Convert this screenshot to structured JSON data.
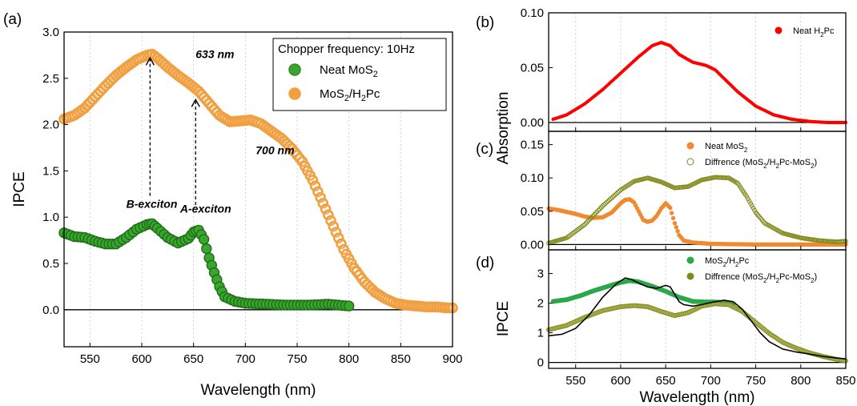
{
  "panel_labels": [
    "(a)",
    "(b)",
    "(c)",
    "(d)"
  ],
  "chart_data": [
    {
      "panel": "(a)",
      "type": "scatter",
      "xlabel": "Wavelength (nm)",
      "ylabel": "IPCE",
      "xlim": [
        525,
        900
      ],
      "ylim": [
        -0.4,
        3.0
      ],
      "xticks": [
        550,
        600,
        650,
        700,
        750,
        800,
        850,
        900
      ],
      "yticks": [
        0.0,
        0.5,
        1.0,
        1.5,
        2.0,
        2.5,
        3.0
      ],
      "grid": "vertical dotted",
      "zero_line": true,
      "legend": {
        "position": "top-right",
        "title": "Chopper frequency: 10Hz",
        "entries": [
          {
            "base": "Neat MoS",
            "sub": "2",
            "rest": "",
            "color": "#2e8b1f"
          },
          {
            "base": "MoS",
            "sub": "2",
            "rest": "/H",
            "sub2": "2",
            "rest2": "Pc",
            "color": "#f0a040"
          }
        ]
      },
      "annotations": [
        {
          "text": "633 nm",
          "x": 652,
          "y": 2.72
        },
        {
          "text": "700 nm",
          "x": 710,
          "y": 1.68
        },
        {
          "text": "B-exciton",
          "x": 585,
          "y": 1.1
        },
        {
          "text": "A-exciton",
          "x": 637,
          "y": 1.05
        }
      ],
      "arrows": [
        {
          "x": 608,
          "y_from": 1.23,
          "y_to": 2.72
        },
        {
          "x": 652,
          "y_from": 1.13,
          "y_to": 2.27
        }
      ],
      "series": [
        {
          "name": "Neat MoS2",
          "color": "#2e8b1f",
          "x": [
            525,
            535,
            545,
            555,
            565,
            575,
            585,
            595,
            605,
            610,
            615,
            625,
            635,
            645,
            650,
            655,
            660,
            665,
            670,
            675,
            680,
            690,
            700,
            720,
            740,
            760,
            780,
            800
          ],
          "y": [
            0.83,
            0.79,
            0.78,
            0.74,
            0.71,
            0.71,
            0.78,
            0.87,
            0.92,
            0.93,
            0.88,
            0.78,
            0.72,
            0.77,
            0.84,
            0.86,
            0.76,
            0.56,
            0.4,
            0.25,
            0.14,
            0.09,
            0.07,
            0.06,
            0.05,
            0.05,
            0.06,
            0.04
          ]
        },
        {
          "name": "MoS2/H2Pc",
          "color": "#f0a040",
          "x": [
            525,
            535,
            545,
            555,
            565,
            575,
            585,
            595,
            605,
            610,
            615,
            625,
            635,
            645,
            655,
            665,
            675,
            685,
            695,
            705,
            715,
            725,
            735,
            745,
            755,
            765,
            775,
            785,
            795,
            805,
            815,
            825,
            835,
            845,
            855,
            865,
            875,
            885,
            895,
            900
          ],
          "y": [
            2.06,
            2.1,
            2.18,
            2.3,
            2.42,
            2.53,
            2.62,
            2.7,
            2.75,
            2.76,
            2.72,
            2.62,
            2.53,
            2.45,
            2.36,
            2.23,
            2.1,
            2.03,
            2.04,
            2.05,
            2.01,
            1.93,
            1.85,
            1.74,
            1.6,
            1.4,
            1.15,
            0.9,
            0.65,
            0.45,
            0.3,
            0.19,
            0.12,
            0.07,
            0.05,
            0.04,
            0.03,
            0.03,
            0.02,
            0.02
          ]
        }
      ]
    },
    {
      "panel": "(b)",
      "type": "scatter",
      "ylabel": "Absorption",
      "xlim": [
        520,
        850
      ],
      "ylim": [
        -0.008,
        0.1
      ],
      "yticks": [
        0.0,
        0.05,
        0.1
      ],
      "legend": {
        "position": "top-right",
        "entries": [
          {
            "base": "Neat H",
            "sub": "2",
            "rest": "Pc",
            "color": "#ff0000"
          }
        ]
      },
      "series": [
        {
          "name": "Neat H2Pc",
          "color": "#ff0000",
          "x": [
            525,
            540,
            560,
            580,
            600,
            620,
            635,
            645,
            655,
            665,
            680,
            695,
            705,
            715,
            730,
            750,
            770,
            790,
            810,
            830,
            850
          ],
          "y": [
            0.003,
            0.007,
            0.017,
            0.03,
            0.045,
            0.06,
            0.07,
            0.073,
            0.07,
            0.062,
            0.055,
            0.052,
            0.048,
            0.04,
            0.028,
            0.015,
            0.007,
            0.003,
            0.001,
            0.0,
            0.0
          ]
        }
      ]
    },
    {
      "panel": "(c)",
      "type": "scatter",
      "xlim": [
        520,
        850
      ],
      "ylim": [
        -0.008,
        0.17
      ],
      "yticks": [
        0.0,
        0.05,
        0.1,
        0.15
      ],
      "legend": {
        "position": "top-center",
        "entries": [
          {
            "base": "Neat MoS",
            "sub": "2",
            "rest": "",
            "color": "#f08a30"
          },
          {
            "base": "Diffrence (MoS",
            "sub": "2",
            "rest": "/H",
            "sub2": "2",
            "rest2": "Pc-MoS",
            "sub3": "2",
            "rest3": ")",
            "color": "#808a1a"
          }
        ]
      },
      "series": [
        {
          "name": "Neat MoS2",
          "color": "#f08a30",
          "x": [
            520,
            530,
            540,
            550,
            560,
            570,
            580,
            590,
            600,
            605,
            610,
            615,
            620,
            625,
            630,
            635,
            640,
            645,
            650,
            655,
            660,
            665,
            670,
            680,
            700,
            750,
            800,
            850
          ],
          "y": [
            0.054,
            0.052,
            0.049,
            0.046,
            0.042,
            0.04,
            0.041,
            0.048,
            0.062,
            0.067,
            0.068,
            0.063,
            0.05,
            0.037,
            0.034,
            0.036,
            0.043,
            0.054,
            0.062,
            0.055,
            0.032,
            0.014,
            0.006,
            0.003,
            0.001,
            0.0,
            0.0,
            0.0
          ]
        },
        {
          "name": "Diffrence (MoS2/H2Pc-MoS2)",
          "color": "#808a1a",
          "x": [
            520,
            540,
            560,
            580,
            600,
            615,
            630,
            645,
            660,
            675,
            690,
            705,
            720,
            730,
            740,
            750,
            760,
            780,
            800,
            820,
            840,
            850
          ],
          "y": [
            0.002,
            0.01,
            0.03,
            0.058,
            0.082,
            0.095,
            0.1,
            0.094,
            0.085,
            0.087,
            0.097,
            0.101,
            0.1,
            0.092,
            0.072,
            0.048,
            0.032,
            0.017,
            0.01,
            0.006,
            0.004,
            0.005
          ]
        }
      ]
    },
    {
      "panel": "(d)",
      "type": "scatter",
      "xlabel": "Wavelength (nm)",
      "ylabel": "IPCE",
      "xlim": [
        520,
        850
      ],
      "ylim": [
        -0.2,
        3.8
      ],
      "xticks": [
        550,
        600,
        650,
        700,
        750,
        800,
        850
      ],
      "yticks": [
        0,
        1,
        2,
        3
      ],
      "legend": {
        "position": "top-center",
        "entries": [
          {
            "base": "MoS",
            "sub": "2",
            "rest": "/H",
            "sub2": "2",
            "rest2": "Pc",
            "color": "#2ca84a"
          },
          {
            "base": "Diffrence (MoS",
            "sub": "2",
            "rest": "/H",
            "sub2": "2",
            "rest2": "Pc-MoS",
            "sub3": "2",
            "rest3": ")",
            "color": "#808a1a"
          }
        ]
      },
      "series": [
        {
          "name": "MoS2/H2Pc",
          "color": "#2ca84a",
          "marker": "circle",
          "x": [
            525,
            540,
            555,
            570,
            585,
            600,
            610,
            620,
            635,
            650,
            665,
            680,
            695,
            705,
            715,
            725
          ],
          "y": [
            2.06,
            2.12,
            2.25,
            2.42,
            2.56,
            2.7,
            2.76,
            2.72,
            2.57,
            2.4,
            2.2,
            2.06,
            2.04,
            2.04,
            2.02,
            1.94
          ]
        },
        {
          "name": "Diffrence (MoS2/H2Pc-MoS2)",
          "color": "#808a1a",
          "marker": "circle",
          "x": [
            520,
            540,
            560,
            580,
            600,
            615,
            630,
            645,
            660,
            675,
            690,
            705,
            720,
            735,
            750,
            765,
            780,
            795,
            810,
            825,
            840,
            850
          ],
          "y": [
            1.1,
            1.25,
            1.52,
            1.75,
            1.88,
            1.92,
            1.88,
            1.72,
            1.58,
            1.68,
            1.9,
            1.98,
            1.95,
            1.72,
            1.35,
            0.98,
            0.68,
            0.48,
            0.32,
            0.2,
            0.1,
            0.05
          ]
        },
        {
          "name": "",
          "color": "#000000",
          "marker": "line",
          "x": [
            520,
            535,
            550,
            565,
            580,
            595,
            605,
            612,
            620,
            630,
            640,
            650,
            655,
            660,
            665,
            670,
            680,
            690,
            700,
            715,
            725,
            735,
            745,
            755,
            765,
            780,
            795,
            810,
            825,
            840,
            850
          ],
          "y": [
            0.9,
            0.95,
            1.15,
            1.6,
            2.2,
            2.65,
            2.85,
            2.8,
            2.68,
            2.55,
            2.5,
            2.6,
            2.55,
            2.3,
            2.05,
            1.95,
            1.9,
            1.95,
            2.02,
            2.1,
            2.05,
            1.8,
            1.4,
            1.0,
            0.7,
            0.45,
            0.35,
            0.28,
            0.2,
            0.15,
            0.12
          ]
        }
      ]
    }
  ]
}
